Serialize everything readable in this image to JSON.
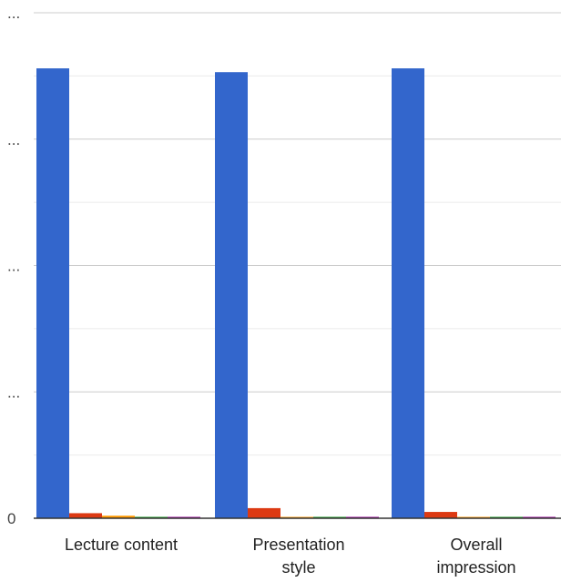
{
  "chart_data": {
    "type": "bar",
    "title": "",
    "xlabel": "",
    "ylabel": "",
    "categories": [
      [
        "Lecture content"
      ],
      [
        "Presentation",
        "style"
      ],
      [
        "Overall",
        "impression"
      ]
    ],
    "series": [
      {
        "color": "#3366cc",
        "values": [
          3.56,
          3.53,
          3.56
        ]
      },
      {
        "color": "#dc3912",
        "values": [
          0.04,
          0.08,
          0.05
        ]
      },
      {
        "color": "#ff9900",
        "values": [
          0.02,
          0.01,
          0.01
        ]
      },
      {
        "color": "#109618",
        "values": [
          0.005,
          0.005,
          0.005
        ]
      },
      {
        "color": "#990099",
        "values": [
          0.005,
          0.005,
          0.005
        ]
      }
    ],
    "ylim": [
      0,
      4
    ],
    "yticks": [
      0,
      1,
      2,
      3,
      4
    ],
    "ytick_labels": [
      "0",
      "...",
      "...",
      "...",
      "..."
    ],
    "minor_gridlines": true,
    "legend": "none"
  }
}
